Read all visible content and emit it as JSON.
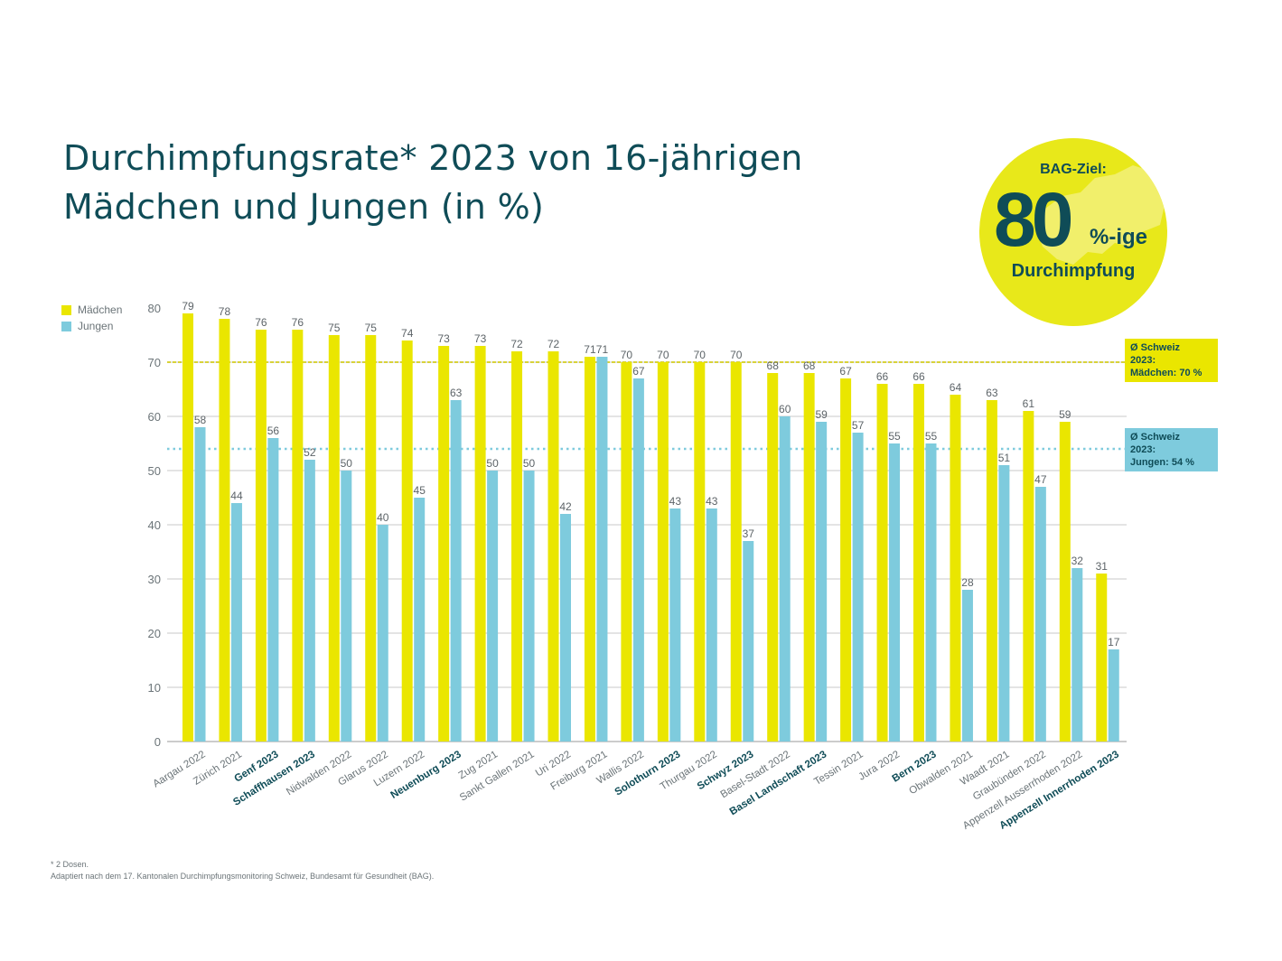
{
  "title": {
    "line1": "Durchimpfungsrate* 2023 von 16-jährigen",
    "line2": "Mädchen und Jungen (in %)"
  },
  "goal_badge": {
    "label": "BAG-Ziel:",
    "value": "80",
    "suffix": "%-ige",
    "subtitle": "Durchimpfung"
  },
  "annotations": {
    "girls_avg": {
      "line1": "Ø Schweiz",
      "line2": "2023:",
      "line3": "Mädchen: 70 %",
      "value": 70
    },
    "boys_avg": {
      "line1": "Ø Schweiz",
      "line2": "2023:",
      "line3": "Jungen: 54 %",
      "value": 54
    }
  },
  "footnote": {
    "line1": "* 2 Dosen.",
    "line2": "Adaptiert nach dem 17. Kantonalen Durchimpfungsmonitoring Schweiz, Bundesamt für Gesundheit (BAG)."
  },
  "colors": {
    "girls": "#eae600",
    "boys": "#7ecbdd",
    "text_dark": "#0f4c57",
    "grid": "#c8c8c8",
    "girls_avg_line": "#d8d23a",
    "boys_avg_line": "#7ecbdd"
  },
  "chart_data": {
    "type": "bar",
    "title": "Durchimpfungsrate* 2023 von 16-jährigen Mädchen und Jungen (in %)",
    "xlabel": "",
    "ylabel": "",
    "ylim": [
      0,
      80
    ],
    "yticks": [
      0,
      10,
      20,
      30,
      40,
      50,
      60,
      70,
      80
    ],
    "grid": true,
    "legend_position": "top-left",
    "categories": [
      "Aargau 2022",
      "Zürich 2021",
      "Genf 2023",
      "Schaffhausen 2023",
      "Nidwalden 2022",
      "Glarus 2022",
      "Luzern 2022",
      "Neuenburg 2023",
      "Zug 2021",
      "Sankt Gallen 2021",
      "Uri 2022",
      "Freiburg 2021",
      "Wallis 2022",
      "Solothurn 2023",
      "Thurgau 2022",
      "Schwyz 2023",
      "Basel-Stadt 2022",
      "Basel Landschaft 2023",
      "Tessin 2021",
      "Jura 2022",
      "Bern 2023",
      "Obwalden 2021",
      "Waadt 2021",
      "Graubünden 2022",
      "Appenzell Ausserrhoden 2022",
      "Appenzell Innerrhoden 2023"
    ],
    "bold_categories": [
      "Genf 2023",
      "Schaffhausen 2023",
      "Neuenburg 2023",
      "Solothurn 2023",
      "Schwyz 2023",
      "Basel Landschaft 2023",
      "Bern 2023",
      "Appenzell Innerrhoden 2023"
    ],
    "series": [
      {
        "name": "Mädchen",
        "values": [
          79,
          78,
          76,
          76,
          75,
          75,
          74,
          73,
          73,
          72,
          72,
          71,
          70,
          70,
          70,
          70,
          68,
          68,
          67,
          66,
          66,
          64,
          63,
          61,
          59,
          31
        ]
      },
      {
        "name": "Jungen",
        "values": [
          58,
          44,
          56,
          52,
          50,
          40,
          45,
          63,
          50,
          50,
          42,
          71,
          67,
          43,
          43,
          37,
          60,
          59,
          57,
          55,
          55,
          28,
          51,
          47,
          32,
          17
        ]
      }
    ],
    "reference_lines": [
      {
        "name": "Ø Schweiz 2023 Mädchen",
        "value": 70,
        "style": "dashed"
      },
      {
        "name": "Ø Schweiz 2023 Jungen",
        "value": 54,
        "style": "dotted"
      }
    ]
  }
}
